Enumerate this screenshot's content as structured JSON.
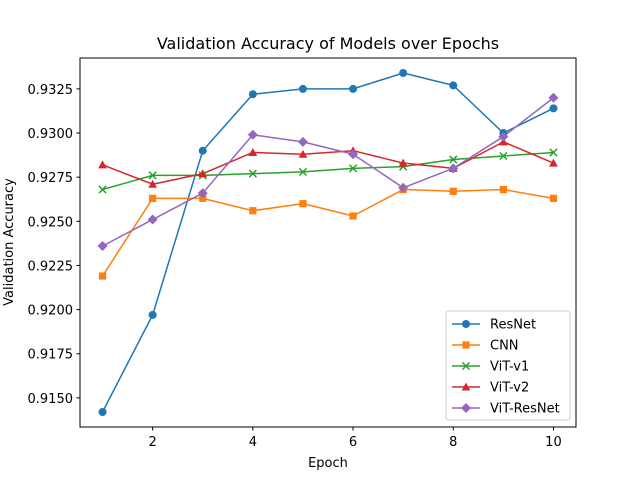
{
  "chart_data": {
    "type": "line",
    "title": "Validation Accuracy of Models over Epochs",
    "xlabel": "Epoch",
    "ylabel": "Validation Accuracy",
    "x": [
      1,
      2,
      3,
      4,
      5,
      6,
      7,
      8,
      9,
      10
    ],
    "xlim": [
      0.55,
      10.45
    ],
    "ylim": [
      0.91335,
      0.93425
    ],
    "xticks": [
      2,
      4,
      6,
      8,
      10
    ],
    "yticks": [
      0.915,
      0.9175,
      0.92,
      0.9225,
      0.925,
      0.9275,
      0.93,
      0.9325
    ],
    "ytick_labels": [
      "0.9150",
      "0.9175",
      "0.9200",
      "0.9225",
      "0.9250",
      "0.9275",
      "0.9300",
      "0.9325"
    ],
    "grid": false,
    "legend_position": "lower-right",
    "series": [
      {
        "name": "ResNet",
        "color": "#1f77b4",
        "marker": "circle",
        "values": [
          0.9142,
          0.9197,
          0.929,
          0.9322,
          0.9325,
          0.9325,
          0.9334,
          0.9327,
          0.93,
          0.9314
        ]
      },
      {
        "name": "CNN",
        "color": "#ff7f0e",
        "marker": "square",
        "values": [
          0.9219,
          0.9263,
          0.9263,
          0.9256,
          0.926,
          0.9253,
          0.9268,
          0.9267,
          0.9268,
          0.9263
        ]
      },
      {
        "name": "ViT-v1",
        "color": "#2ca02c",
        "marker": "x",
        "values": [
          0.9268,
          0.9276,
          0.9276,
          0.9277,
          0.9278,
          0.928,
          0.9281,
          0.9285,
          0.9287,
          0.9289
        ]
      },
      {
        "name": "ViT-v2",
        "color": "#d62728",
        "marker": "triangle",
        "values": [
          0.9282,
          0.9271,
          0.9277,
          0.9289,
          0.9288,
          0.929,
          0.9283,
          0.928,
          0.9295,
          0.9283
        ]
      },
      {
        "name": "ViT-ResNet",
        "color": "#9467bd",
        "marker": "diamond",
        "values": [
          0.9236,
          0.9251,
          0.9266,
          0.9299,
          0.9295,
          0.9288,
          0.9269,
          0.928,
          0.9298,
          0.932
        ]
      }
    ]
  }
}
